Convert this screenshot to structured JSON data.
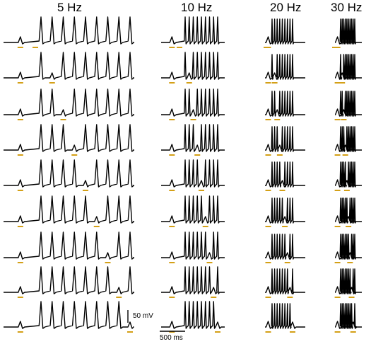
{
  "columns": [
    {
      "title": "5 Hz",
      "freq_hz": 5
    },
    {
      "title": "10 Hz",
      "freq_hz": 10
    },
    {
      "title": "20 Hz",
      "freq_hz": 20
    },
    {
      "title": "30 Hz",
      "freq_hz": 30
    }
  ],
  "rows": 9,
  "scale_bars": {
    "voltage_label": "50 mV",
    "time_label": "500 ms"
  },
  "colors": {
    "trace": "#000000",
    "stimulus_marker": "#d4a017"
  }
}
